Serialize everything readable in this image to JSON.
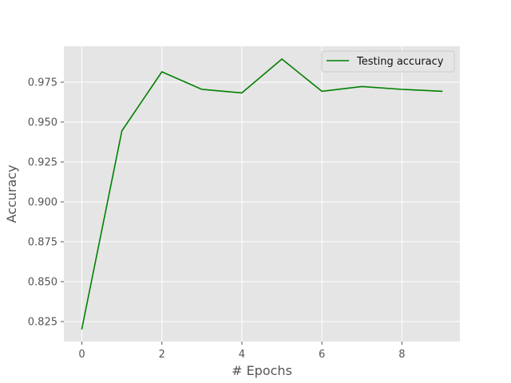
{
  "chart_data": {
    "type": "line",
    "title": "",
    "xlabel": "# Epochs",
    "ylabel": "Accuracy",
    "xlim": [
      -0.45,
      9.45
    ],
    "ylim": [
      0.8125,
      0.9975
    ],
    "xticks": [
      0,
      2,
      4,
      6,
      8
    ],
    "yticks": [
      0.825,
      0.85,
      0.875,
      0.9,
      0.925,
      0.95,
      0.975
    ],
    "xtick_labels": [
      "0",
      "2",
      "4",
      "6",
      "8"
    ],
    "ytick_labels": [
      "0.825",
      "0.850",
      "0.875",
      "0.900",
      "0.925",
      "0.950",
      "0.975"
    ],
    "grid": true,
    "legend_position": "top-right",
    "series": [
      {
        "name": "Testing accuracy",
        "color": "#008000",
        "x": [
          0,
          1,
          2,
          3,
          4,
          5,
          6,
          7,
          8,
          9
        ],
        "y": [
          0.8205,
          0.9445,
          0.9815,
          0.9705,
          0.9683,
          0.9895,
          0.9693,
          0.9723,
          0.9705,
          0.9693
        ]
      }
    ]
  },
  "style": {
    "plot_background": "#e5e5e5",
    "grid_color": "#ffffff",
    "text_color": "#555555"
  }
}
